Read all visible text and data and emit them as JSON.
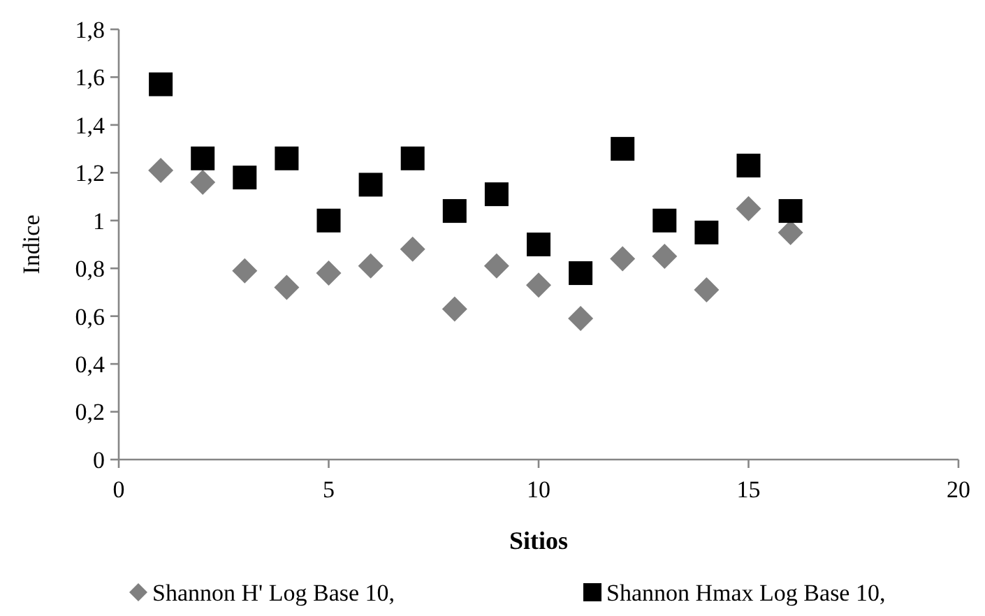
{
  "chart_data": {
    "type": "scatter",
    "xlabel": "Sitios",
    "ylabel": "Indice",
    "x": [
      1,
      2,
      3,
      4,
      5,
      6,
      7,
      8,
      9,
      10,
      11,
      12,
      13,
      14,
      15,
      16
    ],
    "series": [
      {
        "name": "Shannon H' Log Base 10,",
        "color": "#808080",
        "marker": "diamond",
        "values": [
          1.21,
          1.16,
          0.79,
          0.72,
          0.78,
          0.81,
          0.88,
          0.63,
          0.81,
          0.73,
          0.59,
          0.84,
          0.85,
          0.71,
          1.05,
          0.95
        ]
      },
      {
        "name": "Shannon Hmax Log Base 10,",
        "color": "#000000",
        "marker": "square",
        "values": [
          1.57,
          1.26,
          1.18,
          1.26,
          1.0,
          1.15,
          1.26,
          1.04,
          1.11,
          0.9,
          0.78,
          1.3,
          1.0,
          0.95,
          1.23,
          1.04
        ]
      }
    ],
    "xlim": [
      0,
      20
    ],
    "xticks": [
      0,
      5,
      10,
      15,
      20
    ],
    "ylim": [
      0,
      1.8
    ],
    "yticks": [
      0,
      {
        "value": 0.2,
        "label": "0,2"
      },
      {
        "value": 0.4,
        "label": "0,4"
      },
      {
        "value": 0.6,
        "label": "0,6"
      },
      {
        "value": 0.8,
        "label": "0,8"
      },
      1,
      {
        "value": 1.2,
        "label": "1,2"
      },
      {
        "value": 1.4,
        "label": "1,4"
      },
      {
        "value": 1.6,
        "label": "1,6"
      },
      {
        "value": 1.8,
        "label": "1,8"
      }
    ],
    "grid": false,
    "legend": "bottom"
  }
}
